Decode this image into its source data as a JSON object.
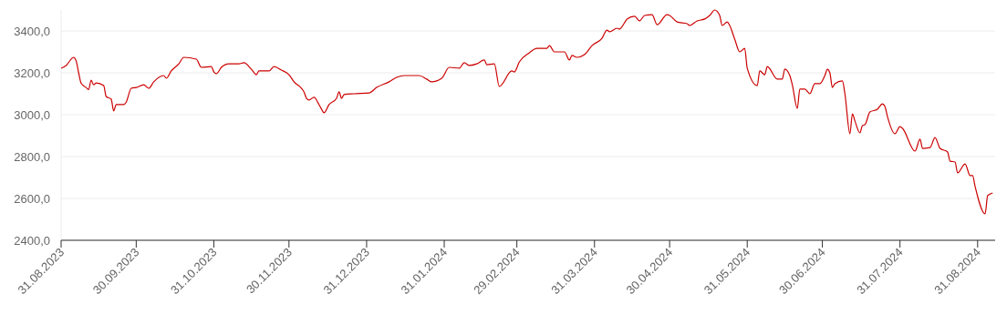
{
  "chart_data": {
    "type": "line",
    "xlim": [
      "2023-08-31",
      "2024-09-07"
    ],
    "ylim": [
      2400,
      3500
    ],
    "xticks": [
      {
        "value": "2023-08-31",
        "label": "31.08.2023"
      },
      {
        "value": "2023-09-30",
        "label": "30.09.2023"
      },
      {
        "value": "2023-10-31",
        "label": "31.10.2023"
      },
      {
        "value": "2023-11-30",
        "label": "30.11.2023"
      },
      {
        "value": "2023-12-31",
        "label": "31.12.2023"
      },
      {
        "value": "2024-01-31",
        "label": "31.01.2024"
      },
      {
        "value": "2024-02-29",
        "label": "29.02.2024"
      },
      {
        "value": "2024-03-31",
        "label": "31.03.2024"
      },
      {
        "value": "2024-04-30",
        "label": "30.04.2024"
      },
      {
        "value": "2024-05-31",
        "label": "31.05.2024"
      },
      {
        "value": "2024-06-30",
        "label": "30.06.2024"
      },
      {
        "value": "2024-07-31",
        "label": "31.07.2024"
      },
      {
        "value": "2024-08-31",
        "label": "31.08.2024"
      }
    ],
    "yticks": [
      {
        "value": 2400,
        "label": "2400,0"
      },
      {
        "value": 2600,
        "label": "2600,0"
      },
      {
        "value": 2800,
        "label": "2800,0"
      },
      {
        "value": 3000,
        "label": "3000,0"
      },
      {
        "value": 3200,
        "label": "3200,0"
      },
      {
        "value": 3400,
        "label": "3400,0"
      }
    ],
    "grid": "y",
    "marker": "none",
    "line_style": "solid",
    "x": [
      "2023-08-31",
      "2023-09-02",
      "2023-09-05",
      "2023-09-06",
      "2023-09-07",
      "2023-09-08",
      "2023-09-10",
      "2023-09-11",
      "2023-09-12",
      "2023-09-13",
      "2023-09-14",
      "2023-09-17",
      "2023-09-18",
      "2023-09-20",
      "2023-09-21",
      "2023-09-22",
      "2023-09-25",
      "2023-09-26",
      "2023-09-28",
      "2023-09-30",
      "2023-10-03",
      "2023-10-05",
      "2023-10-07",
      "2023-10-11",
      "2023-10-12",
      "2023-10-14",
      "2023-10-17",
      "2023-10-19",
      "2023-10-24",
      "2023-10-26",
      "2023-10-30",
      "2023-10-31",
      "2023-11-01",
      "2023-11-03",
      "2023-11-06",
      "2023-11-10",
      "2023-11-12",
      "2023-11-15",
      "2023-11-17",
      "2023-11-18",
      "2023-11-22",
      "2023-11-24",
      "2023-11-27",
      "2023-11-30",
      "2023-12-02",
      "2023-12-05",
      "2023-12-06",
      "2023-12-07",
      "2023-12-08",
      "2023-12-10",
      "2023-12-12",
      "2023-12-13",
      "2023-12-14",
      "2023-12-16",
      "2023-12-19",
      "2023-12-20",
      "2023-12-21",
      "2023-12-22",
      "2023-12-26",
      "2024-01-01",
      "2024-01-04",
      "2024-01-09",
      "2024-01-12",
      "2024-01-15",
      "2024-01-21",
      "2024-01-24",
      "2024-01-26",
      "2024-01-30",
      "2024-02-02",
      "2024-02-06",
      "2024-02-08",
      "2024-02-10",
      "2024-02-13",
      "2024-02-16",
      "2024-02-17",
      "2024-02-20",
      "2024-02-22",
      "2024-02-27",
      "2024-02-28",
      "2024-03-01",
      "2024-03-05",
      "2024-03-08",
      "2024-03-12",
      "2024-03-13",
      "2024-03-15",
      "2024-03-19",
      "2024-03-21",
      "2024-03-22",
      "2024-03-24",
      "2024-03-27",
      "2024-03-30",
      "2024-04-03",
      "2024-04-05",
      "2024-04-06",
      "2024-04-09",
      "2024-04-10",
      "2024-04-12",
      "2024-04-13",
      "2024-04-16",
      "2024-04-18",
      "2024-04-20",
      "2024-04-23",
      "2024-04-25",
      "2024-04-29",
      "2024-04-30",
      "2024-05-03",
      "2024-05-07",
      "2024-05-08",
      "2024-05-11",
      "2024-05-14",
      "2024-05-16",
      "2024-05-18",
      "2024-05-20",
      "2024-05-21",
      "2024-05-23",
      "2024-05-24",
      "2024-05-26",
      "2024-05-28",
      "2024-05-30",
      "2024-05-31",
      "2024-06-04",
      "2024-06-05",
      "2024-06-07",
      "2024-06-08",
      "2024-06-12",
      "2024-06-14",
      "2024-06-15",
      "2024-06-17",
      "2024-06-18",
      "2024-06-20",
      "2024-06-21",
      "2024-06-23",
      "2024-06-25",
      "2024-06-27",
      "2024-06-29",
      "2024-07-01",
      "2024-07-02",
      "2024-07-03",
      "2024-07-04",
      "2024-07-05",
      "2024-07-08",
      "2024-07-09",
      "2024-07-11",
      "2024-07-12",
      "2024-07-13",
      "2024-07-15",
      "2024-07-16",
      "2024-07-17",
      "2024-07-19",
      "2024-07-22",
      "2024-07-24",
      "2024-07-25",
      "2024-07-26",
      "2024-07-29",
      "2024-07-31",
      "2024-08-01",
      "2024-08-06",
      "2024-08-08",
      "2024-08-09",
      "2024-08-12",
      "2024-08-14",
      "2024-08-16",
      "2024-08-19",
      "2024-08-20",
      "2024-08-22",
      "2024-08-23",
      "2024-08-26",
      "2024-08-28",
      "2024-08-29",
      "2024-08-30",
      "2024-09-03",
      "2024-09-04",
      "2024-09-06"
    ],
    "series": [
      {
        "color": "#cc0000",
        "values": [
          3222,
          3235,
          3274,
          3257,
          3200,
          3150,
          3130,
          3120,
          3165,
          3143,
          3152,
          3139,
          3087,
          3074,
          3018,
          3048,
          3048,
          3060,
          3126,
          3130,
          3143,
          3126,
          3157,
          3187,
          3174,
          3209,
          3243,
          3274,
          3265,
          3226,
          3230,
          3204,
          3196,
          3226,
          3243,
          3243,
          3248,
          3217,
          3191,
          3209,
          3209,
          3230,
          3213,
          3191,
          3157,
          3126,
          3109,
          3078,
          3070,
          3083,
          3048,
          3026,
          3009,
          3048,
          3078,
          3109,
          3078,
          3096,
          3100,
          3104,
          3130,
          3157,
          3178,
          3187,
          3187,
          3170,
          3157,
          3174,
          3226,
          3222,
          3248,
          3235,
          3243,
          3261,
          3239,
          3243,
          3135,
          3209,
          3204,
          3252,
          3296,
          3317,
          3317,
          3330,
          3300,
          3300,
          3261,
          3283,
          3274,
          3287,
          3330,
          3365,
          3404,
          3396,
          3413,
          3409,
          3439,
          3457,
          3470,
          3448,
          3474,
          3478,
          3430,
          3478,
          3474,
          3443,
          3435,
          3426,
          3448,
          3457,
          3474,
          3500,
          3474,
          3426,
          3443,
          3426,
          3361,
          3300,
          3317,
          3222,
          3139,
          3209,
          3191,
          3230,
          3170,
          3170,
          3218,
          3187,
          3143,
          3030,
          3122,
          3122,
          3100,
          3148,
          3148,
          3187,
          3217,
          3200,
          3130,
          3148,
          3161,
          3100,
          2909,
          3004,
          2970,
          2913,
          2948,
          2952,
          3013,
          3026,
          3052,
          3039,
          2991,
          2909,
          2943,
          2935,
          2826,
          2883,
          2839,
          2843,
          2891,
          2839,
          2822,
          2778,
          2774,
          2722,
          2765,
          2709,
          2709,
          2657,
          2526,
          2613,
          2626
        ]
      }
    ]
  }
}
